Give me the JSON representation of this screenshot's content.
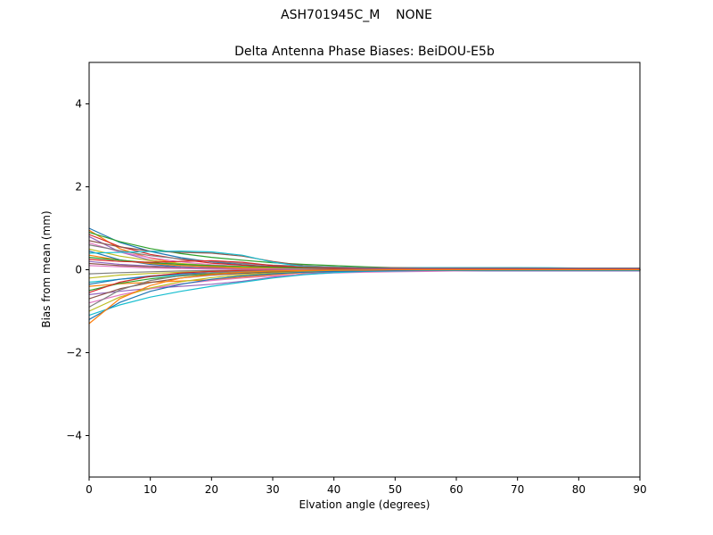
{
  "figure": {
    "suptitle": "ASH701945C_M    NONE",
    "axes_title": "Delta Antenna Phase Biases: BeiDOU-E5b"
  },
  "chart_data": {
    "type": "line",
    "title": "Delta Antenna Phase Biases: BeiDOU-E5b",
    "suptitle": "ASH701945C_M    NONE",
    "xlabel": "Elvation angle (degrees)",
    "ylabel": "Bias from mean (mm)",
    "xlim": [
      0,
      90
    ],
    "ylim": [
      -5,
      5
    ],
    "xticks": [
      0,
      10,
      20,
      30,
      40,
      50,
      60,
      70,
      80,
      90
    ],
    "yticks": [
      -4,
      -2,
      0,
      2,
      4
    ],
    "grid": false,
    "legend": "none",
    "x": [
      0,
      5,
      10,
      15,
      20,
      25,
      30,
      35,
      40,
      45,
      50,
      55,
      60,
      65,
      70,
      75,
      80,
      85,
      90
    ],
    "series": [
      {
        "color": "#1f77b4",
        "values": [
          1.0,
          0.66,
          0.44,
          0.29,
          0.19,
          0.12,
          0.08,
          0.05,
          0.04,
          0.03,
          0.02,
          0.02,
          0.02,
          0.02,
          0.02,
          0.02,
          0.02,
          0.02,
          0.02
        ]
      },
      {
        "color": "#ff7f0e",
        "values": [
          0.95,
          0.51,
          0.28,
          0.14,
          0.08,
          0.04,
          0.02,
          0.01,
          0.01,
          0.01,
          0.01,
          0.01,
          0.01,
          0.01,
          0.01,
          0.01,
          0.01,
          0.01,
          0.01
        ]
      },
      {
        "color": "#2ca02c",
        "values": [
          0.9,
          0.68,
          0.51,
          0.39,
          0.3,
          0.23,
          0.17,
          0.13,
          0.1,
          0.07,
          0.05,
          0.04,
          0.03,
          0.03,
          0.02,
          0.02,
          0.01,
          0.01,
          0.01
        ]
      },
      {
        "color": "#d62728",
        "values": [
          0.85,
          0.56,
          0.37,
          0.25,
          0.16,
          0.11,
          0.07,
          0.04,
          0.03,
          0.02,
          0.01,
          0.01,
          0.01,
          0.0,
          0.0,
          0.0,
          0.0,
          0.0,
          0.0
        ]
      },
      {
        "color": "#9467bd",
        "values": [
          0.8,
          0.43,
          0.23,
          0.12,
          0.06,
          0.03,
          0.02,
          0.01,
          0.0,
          0.0,
          0.0,
          0.0,
          0.0,
          0.0,
          0.0,
          0.0,
          0.0,
          0.0,
          0.0
        ]
      },
      {
        "color": "#8c564b",
        "values": [
          0.7,
          0.55,
          0.45,
          0.42,
          0.4,
          0.33,
          0.2,
          0.1,
          0.06,
          0.05,
          0.05,
          0.05,
          0.05,
          0.05,
          0.05,
          0.04,
          0.04,
          0.04,
          0.04
        ]
      },
      {
        "color": "#e377c2",
        "values": [
          0.65,
          0.43,
          0.29,
          0.19,
          0.12,
          0.08,
          0.05,
          0.03,
          0.02,
          0.02,
          0.01,
          0.01,
          0.01,
          0.01,
          0.01,
          0.01,
          0.01,
          0.01,
          0.01
        ]
      },
      {
        "color": "#7f7f7f",
        "values": [
          0.6,
          0.46,
          0.34,
          0.26,
          0.2,
          0.15,
          0.11,
          0.09,
          0.07,
          0.05,
          0.04,
          0.03,
          0.02,
          0.02,
          0.02,
          0.01,
          0.01,
          0.01,
          0.01
        ]
      },
      {
        "color": "#bcbd22",
        "values": [
          0.5,
          0.33,
          0.22,
          0.15,
          0.1,
          0.06,
          0.04,
          0.03,
          0.02,
          0.01,
          0.01,
          0.01,
          0.01,
          0.01,
          0.01,
          0.01,
          0.01,
          0.01,
          0.01
        ]
      },
      {
        "color": "#1f77b4",
        "values": [
          0.45,
          0.24,
          0.13,
          0.07,
          0.04,
          0.02,
          0.01,
          0.01,
          0.0,
          0.0,
          0.0,
          0.0,
          0.0,
          0.0,
          0.0,
          0.0,
          0.0,
          0.0,
          0.0
        ]
      },
      {
        "color": "#17becf",
        "values": [
          0.4,
          0.42,
          0.44,
          0.45,
          0.43,
          0.35,
          0.18,
          0.08,
          0.05,
          0.04,
          0.04,
          0.05,
          0.05,
          0.05,
          0.05,
          0.05,
          0.04,
          0.04,
          0.04
        ]
      },
      {
        "color": "#ff7f0e",
        "values": [
          0.35,
          0.23,
          0.15,
          0.1,
          0.07,
          0.04,
          0.03,
          0.02,
          0.01,
          0.01,
          0.01,
          0.01,
          0.0,
          0.0,
          0.0,
          0.0,
          0.0,
          0.0,
          0.0
        ]
      },
      {
        "color": "#2ca02c",
        "values": [
          0.3,
          0.23,
          0.17,
          0.13,
          0.1,
          0.08,
          0.06,
          0.04,
          0.03,
          0.02,
          0.02,
          0.01,
          0.01,
          0.01,
          0.01,
          0.01,
          0.0,
          0.0,
          0.0
        ]
      },
      {
        "color": "#d62728",
        "values": [
          0.25,
          0.2,
          0.18,
          0.2,
          0.22,
          0.18,
          0.1,
          0.06,
          0.04,
          0.03,
          0.03,
          0.03,
          0.03,
          0.03,
          0.03,
          0.03,
          0.03,
          0.03,
          0.03
        ]
      },
      {
        "color": "#9467bd",
        "values": [
          0.2,
          0.13,
          0.09,
          0.06,
          0.04,
          0.02,
          0.02,
          0.01,
          0.01,
          0.01,
          0.01,
          0.01,
          0.01,
          0.01,
          0.01,
          0.01,
          0.01,
          0.01,
          0.01
        ]
      },
      {
        "color": "#8c564b",
        "values": [
          0.15,
          0.1,
          0.07,
          0.04,
          0.03,
          0.02,
          0.01,
          0.01,
          0.01,
          0.0,
          0.0,
          0.0,
          0.0,
          0.0,
          0.0,
          0.0,
          0.0,
          0.0,
          0.0
        ]
      },
      {
        "color": "#e377c2",
        "values": [
          0.1,
          0.07,
          0.04,
          0.03,
          0.02,
          0.01,
          0.01,
          0.01,
          0.0,
          0.0,
          0.0,
          0.0,
          0.0,
          0.0,
          0.0,
          0.0,
          0.0,
          0.0,
          0.0
        ]
      },
      {
        "color": "#7f7f7f",
        "values": [
          -0.1,
          -0.07,
          -0.05,
          -0.03,
          -0.02,
          -0.01,
          -0.01,
          -0.01,
          0.0,
          0.0,
          0.0,
          0.0,
          0.0,
          0.0,
          0.0,
          0.0,
          0.0,
          0.0,
          0.0
        ]
      },
      {
        "color": "#bcbd22",
        "values": [
          -0.2,
          -0.13,
          -0.09,
          -0.06,
          -0.04,
          -0.02,
          -0.02,
          -0.01,
          -0.01,
          -0.01,
          -0.01,
          -0.01,
          -0.01,
          -0.01,
          -0.01,
          -0.01,
          -0.01,
          -0.01,
          -0.01
        ]
      },
      {
        "color": "#17becf",
        "values": [
          -0.3,
          -0.23,
          -0.17,
          -0.13,
          -0.1,
          -0.08,
          -0.06,
          -0.04,
          -0.03,
          -0.02,
          -0.02,
          -0.01,
          -0.01,
          -0.01,
          -0.01,
          -0.01,
          -0.01,
          -0.01,
          -0.01
        ]
      },
      {
        "color": "#1f77b4",
        "values": [
          -0.35,
          -0.23,
          -0.15,
          -0.1,
          -0.07,
          -0.04,
          -0.03,
          -0.02,
          -0.01,
          -0.01,
          -0.01,
          -0.01,
          0.0,
          0.0,
          0.0,
          0.0,
          0.0,
          0.0,
          0.0
        ]
      },
      {
        "color": "#ff7f0e",
        "values": [
          -0.4,
          -0.34,
          -0.3,
          -0.27,
          -0.24,
          -0.18,
          -0.12,
          -0.07,
          -0.04,
          -0.03,
          -0.02,
          -0.02,
          -0.02,
          -0.02,
          -0.02,
          -0.02,
          -0.02,
          -0.02,
          -0.02
        ]
      },
      {
        "color": "#2ca02c",
        "values": [
          -0.5,
          -0.33,
          -0.22,
          -0.15,
          -0.1,
          -0.06,
          -0.04,
          -0.03,
          -0.02,
          -0.01,
          -0.01,
          -0.01,
          -0.01,
          -0.01,
          -0.01,
          -0.01,
          -0.01,
          -0.01,
          -0.01
        ]
      },
      {
        "color": "#d62728",
        "values": [
          -0.55,
          -0.3,
          -0.16,
          -0.08,
          -0.04,
          -0.02,
          -0.01,
          -0.01,
          0.0,
          0.0,
          0.0,
          0.0,
          0.0,
          0.0,
          0.0,
          0.0,
          0.0,
          0.0,
          0.0
        ]
      },
      {
        "color": "#9467bd",
        "values": [
          -0.6,
          -0.52,
          -0.45,
          -0.4,
          -0.35,
          -0.28,
          -0.18,
          -0.1,
          -0.06,
          -0.04,
          -0.03,
          -0.03,
          -0.03,
          -0.03,
          -0.03,
          -0.03,
          -0.03,
          -0.03,
          -0.03
        ]
      },
      {
        "color": "#8c564b",
        "values": [
          -0.7,
          -0.46,
          -0.31,
          -0.2,
          -0.13,
          -0.09,
          -0.06,
          -0.04,
          -0.03,
          -0.02,
          -0.01,
          -0.01,
          -0.01,
          -0.01,
          -0.01,
          -0.01,
          -0.01,
          -0.01,
          -0.01
        ]
      },
      {
        "color": "#e377c2",
        "values": [
          -0.8,
          -0.61,
          -0.46,
          -0.34,
          -0.26,
          -0.2,
          -0.15,
          -0.11,
          -0.08,
          -0.06,
          -0.05,
          -0.04,
          -0.03,
          -0.02,
          -0.02,
          -0.01,
          -0.01,
          -0.01,
          -0.01
        ]
      },
      {
        "color": "#7f7f7f",
        "values": [
          -0.9,
          -0.49,
          -0.26,
          -0.14,
          -0.07,
          -0.04,
          -0.02,
          -0.01,
          -0.01,
          0.0,
          0.0,
          0.0,
          0.0,
          0.0,
          0.0,
          0.0,
          0.0,
          0.0,
          0.0
        ]
      },
      {
        "color": "#bcbd22",
        "values": [
          -1.0,
          -0.66,
          -0.44,
          -0.29,
          -0.19,
          -0.12,
          -0.08,
          -0.05,
          -0.03,
          -0.02,
          -0.02,
          -0.01,
          -0.01,
          -0.01,
          -0.01,
          -0.01,
          -0.01,
          -0.01,
          -0.01
        ]
      },
      {
        "color": "#17becf",
        "values": [
          -1.1,
          -0.85,
          -0.66,
          -0.52,
          -0.4,
          -0.3,
          -0.2,
          -0.12,
          -0.07,
          -0.04,
          -0.03,
          -0.02,
          -0.02,
          -0.02,
          -0.02,
          -0.02,
          -0.02,
          -0.02,
          -0.02
        ]
      },
      {
        "color": "#1f77b4",
        "values": [
          -1.2,
          -0.79,
          -0.52,
          -0.35,
          -0.23,
          -0.15,
          -0.1,
          -0.06,
          -0.04,
          -0.03,
          -0.02,
          -0.01,
          -0.01,
          -0.01,
          -0.01,
          -0.01,
          -0.01,
          -0.01,
          -0.01
        ]
      },
      {
        "color": "#ff7f0e",
        "values": [
          -1.3,
          -0.7,
          -0.38,
          -0.2,
          -0.11,
          -0.06,
          -0.03,
          -0.02,
          -0.01,
          -0.01,
          0.0,
          0.0,
          0.0,
          0.0,
          0.0,
          0.0,
          0.0,
          0.0,
          0.0
        ]
      }
    ]
  }
}
